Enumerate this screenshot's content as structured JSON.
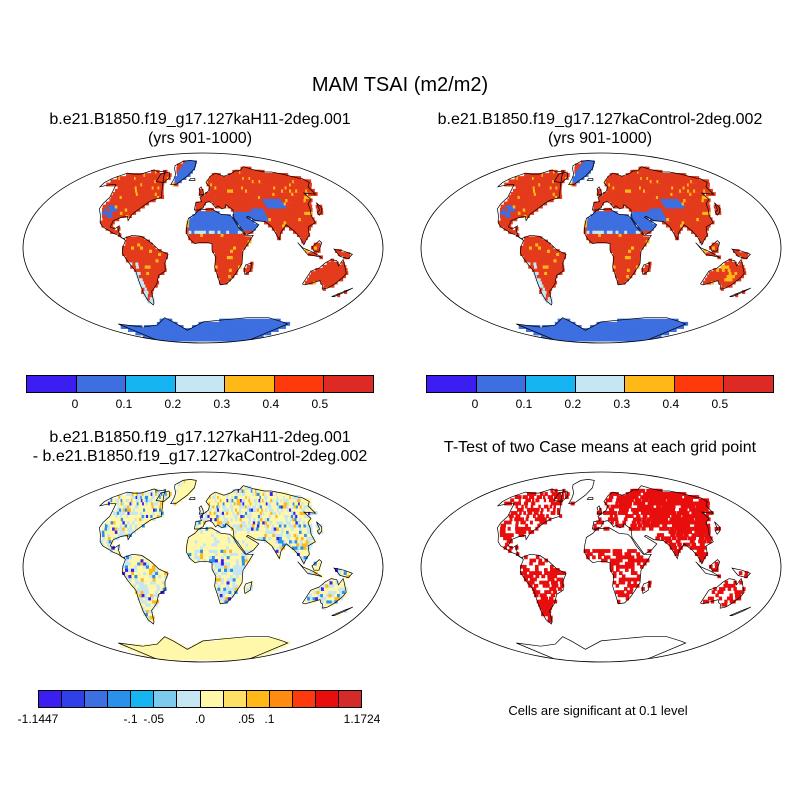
{
  "title": "MAM TSAI (m2/m2)",
  "panels": {
    "top_left": {
      "line1": "b.e21.B1850.f19_g17.127kaH11-2deg.001",
      "line2": "(yrs 901-1000)"
    },
    "top_right": {
      "line1": "b.e21.B1850.f19_g17.127kaControl-2deg.002",
      "line2": "(yrs 901-1000)"
    },
    "bottom_left": {
      "line1": "b.e21.B1850.f19_g17.127kaH11-2deg.001",
      "line2": "- b.e21.B1850.f19_g17.127kaControl-2deg.002"
    },
    "bottom_right": {
      "line1": "T-Test of two Case means at each grid point",
      "note": "Cells are significant at 0.1 level"
    }
  },
  "colorbar_abs": {
    "colors": [
      "#3b1ef2",
      "#3d6fe0",
      "#16b4f0",
      "#c6e6f4",
      "#ffb818",
      "#fe3a0c",
      "#dd2a25"
    ],
    "ticks": [
      "0",
      "0.1",
      "0.2",
      "0.3",
      "0.4",
      "0.5"
    ]
  },
  "colorbar_diff": {
    "colors": [
      "#3b1ef2",
      "#3040e8",
      "#3c6fe0",
      "#2a90ea",
      "#16b4f0",
      "#7ccbef",
      "#c6e6f4",
      "#fff7aa",
      "#ffe066",
      "#ffb818",
      "#ff8c10",
      "#fe3a0c",
      "#e80e0e",
      "#d42a2a"
    ],
    "ticks": [
      "-1.1447",
      "-.1",
      "-.05",
      ".0",
      ".05",
      ".1",
      "1.1724"
    ]
  },
  "map_colors": {
    "ocean": "#ffffff",
    "veg_high": "#e33b1c",
    "veg_mid": "#ffb818",
    "low": "#3d6fe0",
    "pale_blue": "#c6e6f4",
    "pale_yellow": "#fff7aa",
    "blue_diff": "#2a90ea",
    "dark_blue": "#3b1ef2",
    "sig_red": "#e80e0e"
  }
}
